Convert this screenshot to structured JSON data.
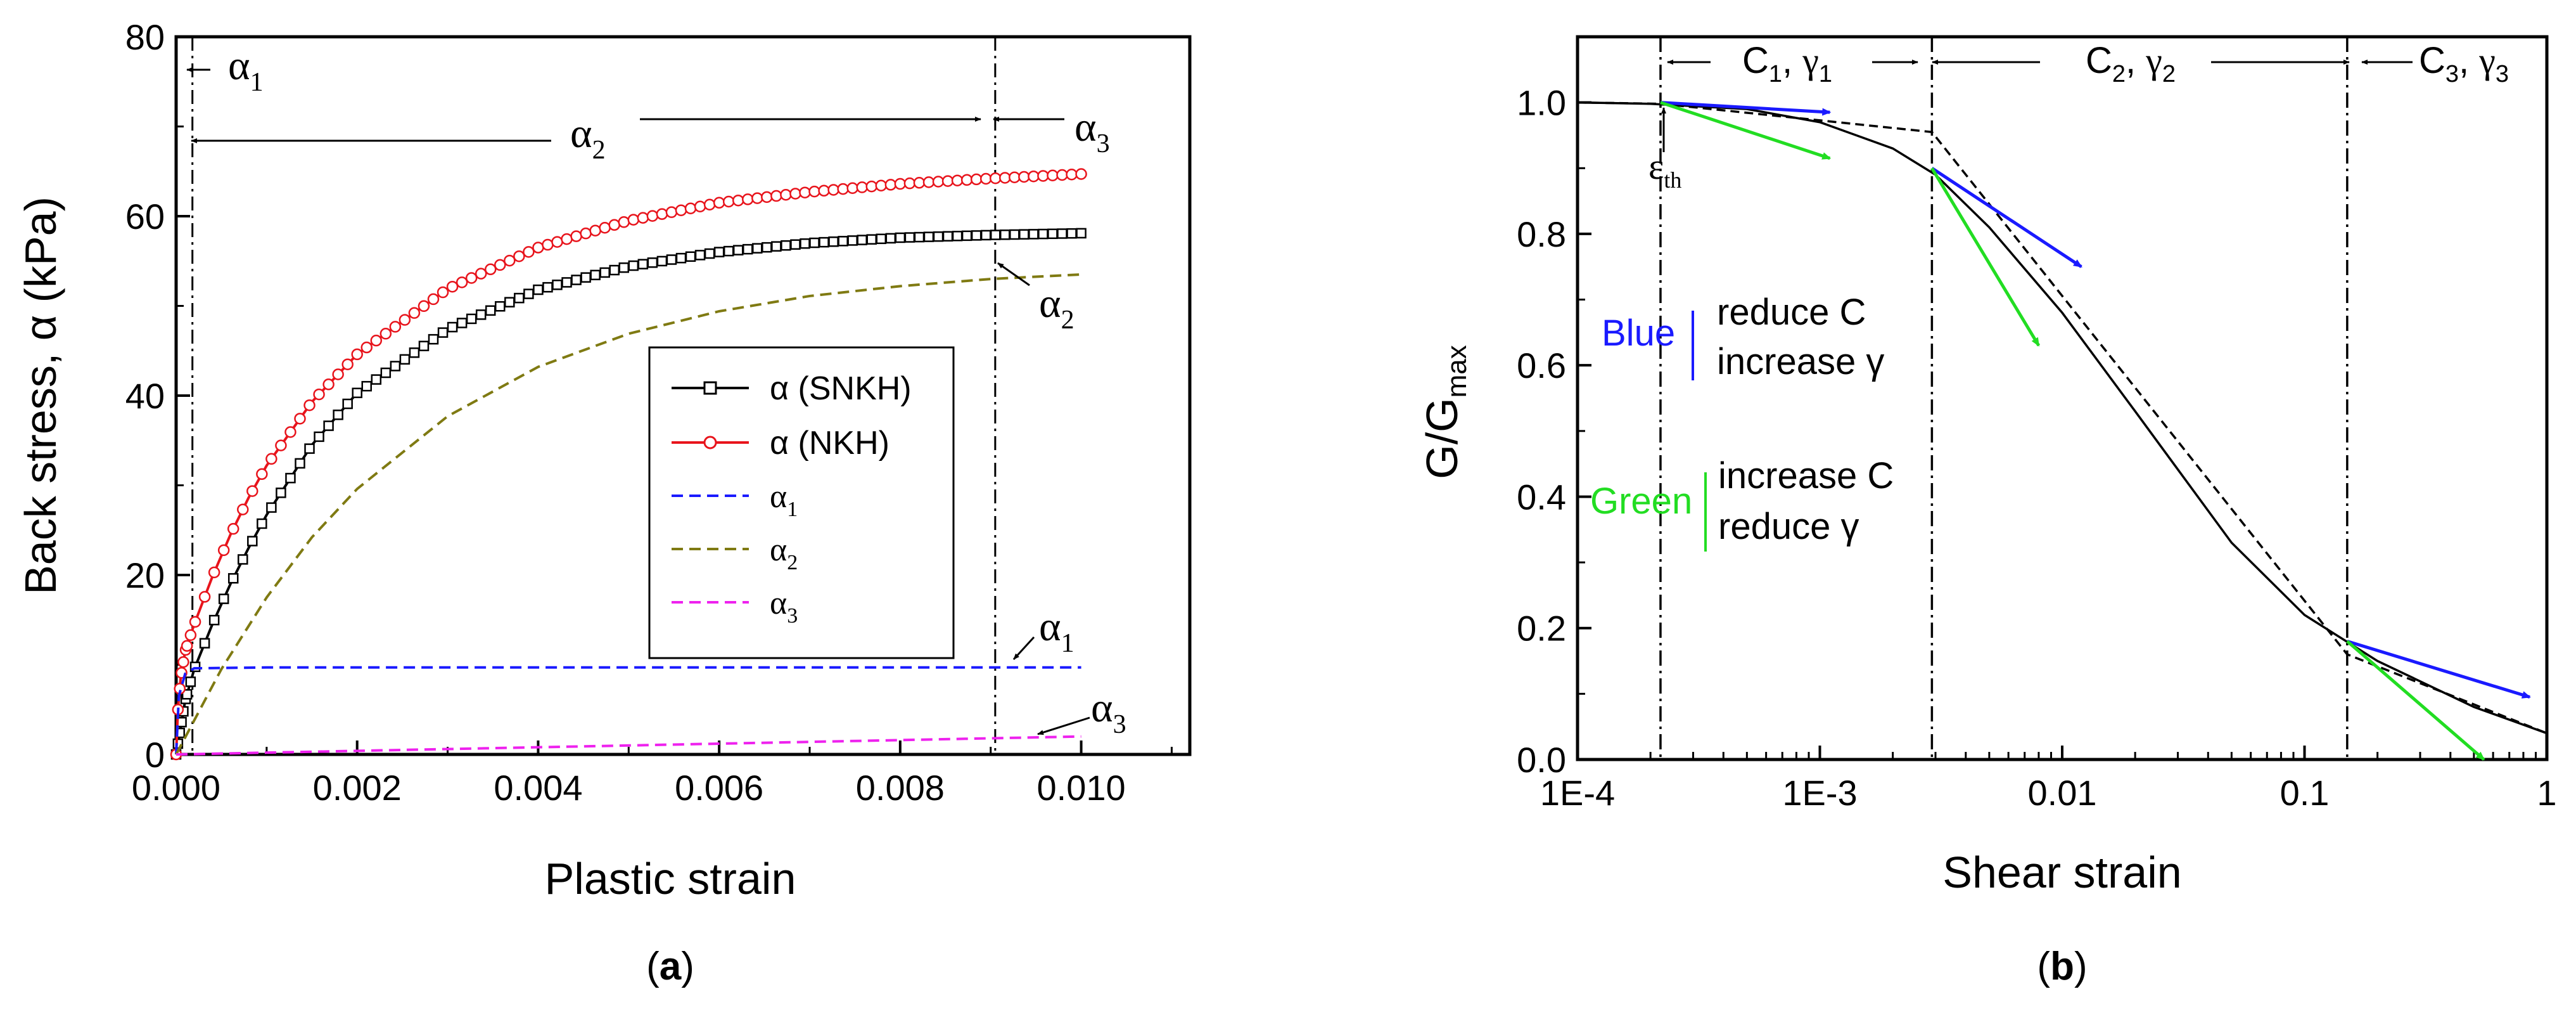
{
  "colors": {
    "snkh": "#000000",
    "nkh": "#e8141c",
    "alpha1": "#1a1aff",
    "alpha2": "#7f7a12",
    "alpha3": "#ee22ee",
    "blue": "#1a1aff",
    "green": "#22dd22"
  },
  "panel_a": {
    "caption": {
      "open": "(",
      "letter": "a",
      "close": ")"
    },
    "annotations": {
      "a1_top": "α",
      "a1_top_sub": "1",
      "a2_top": "α",
      "a2_top_sub": "2",
      "a3_top": "α",
      "a3_top_sub": "3",
      "a2_right": "α",
      "a2_right_sub": "2",
      "a1_right": "α",
      "a1_right_sub": "1",
      "a3_right": "α",
      "a3_right_sub": "3"
    },
    "legend": [
      {
        "main": "α (SNKH)",
        "sub": ""
      },
      {
        "main": "α (NKH)",
        "sub": ""
      },
      {
        "main": "α",
        "sub": "1"
      },
      {
        "main": "α",
        "sub": "2"
      },
      {
        "main": "α",
        "sub": "3"
      }
    ]
  },
  "panel_b": {
    "caption": {
      "open": "(",
      "letter": "b",
      "close": ")"
    },
    "region_labels": [
      {
        "c": "C",
        "c_sub": "1",
        "sep": ", ",
        "g": "γ",
        "g_sub": "1"
      },
      {
        "c": "C",
        "c_sub": "2",
        "sep": ", ",
        "g": "γ",
        "g_sub": "2"
      },
      {
        "c": "C",
        "c_sub": "3",
        "sep": ", ",
        "g": "γ",
        "g_sub": "3"
      }
    ],
    "eps_th": {
      "main": "ε",
      "sub": "th"
    },
    "blue_note": {
      "label": "Blue",
      "line1": "reduce C",
      "line2": "increase γ"
    },
    "green_note": {
      "label": "Green",
      "line1": "increase C",
      "line2": "reduce γ"
    }
  },
  "chart_data": [
    {
      "type": "line",
      "title": "",
      "xlabel": "Plastic strain",
      "ylabel": "Back stress, α (kPa)",
      "xlim": [
        0,
        0.0112
      ],
      "ylim": [
        0,
        80
      ],
      "xticks": [
        0.0,
        0.002,
        0.004,
        0.006,
        0.008,
        0.01
      ],
      "xtick_labels": [
        "0.000",
        "0.002",
        "0.004",
        "0.006",
        "0.008",
        "0.010"
      ],
      "yticks": [
        0,
        20,
        40,
        60,
        80
      ],
      "ytick_labels": [
        "0",
        "20",
        "40",
        "60",
        "80"
      ],
      "vlines": [
        0.00018,
        0.00905
      ],
      "legend_position": "center-right",
      "series": [
        {
          "name": "α (SNKH)",
          "style": "solid-square-markers",
          "x": [
            0,
            5e-05,
            0.0001,
            0.0002,
            0.0004,
            0.0006,
            0.0008,
            0.001,
            0.0015,
            0.002,
            0.003,
            0.004,
            0.005,
            0.006,
            0.007,
            0.008,
            0.009,
            0.01
          ],
          "y": [
            0,
            3,
            6,
            9.5,
            14.5,
            19,
            23,
            26.7,
            34.5,
            40.3,
            47.4,
            51.8,
            54.4,
            56.0,
            57.0,
            57.6,
            57.9,
            58.1
          ]
        },
        {
          "name": "α (NKH)",
          "style": "solid-circle-markers",
          "x": [
            0,
            2e-05,
            5e-05,
            0.0001,
            0.0002,
            0.0004,
            0.0006,
            0.0008,
            0.001,
            0.0015,
            0.002,
            0.003,
            0.004,
            0.005,
            0.006,
            0.007,
            0.008,
            0.009,
            0.01
          ],
          "y": [
            0,
            5,
            8.5,
            11.5,
            14.5,
            19.8,
            24.5,
            28.6,
            32.2,
            39.3,
            44.6,
            51.9,
            56.5,
            59.5,
            61.5,
            62.7,
            63.6,
            64.2,
            64.7
          ]
        },
        {
          "name": "α1",
          "style": "dashed",
          "x": [
            0,
            3e-05,
            0.0001,
            0.0002,
            0.001,
            0.003,
            0.005,
            0.007,
            0.009,
            0.01
          ],
          "y": [
            0,
            6.5,
            9.0,
            9.6,
            9.7,
            9.7,
            9.7,
            9.7,
            9.7,
            9.7
          ]
        },
        {
          "name": "α2",
          "style": "dashed",
          "x": [
            0,
            0.0005,
            0.001,
            0.0015,
            0.002,
            0.003,
            0.004,
            0.005,
            0.006,
            0.007,
            0.008,
            0.009,
            0.01
          ],
          "y": [
            0,
            9.5,
            17.5,
            24.2,
            29.6,
            37.7,
            43.2,
            46.9,
            49.4,
            51.1,
            52.2,
            53.0,
            53.5
          ]
        },
        {
          "name": "α3",
          "style": "dashed",
          "x": [
            0,
            0.001,
            0.002,
            0.004,
            0.006,
            0.008,
            0.01
          ],
          "y": [
            0,
            0.2,
            0.4,
            0.8,
            1.2,
            1.6,
            2.0
          ]
        }
      ]
    },
    {
      "type": "line",
      "title": "",
      "xlabel": "Shear strain",
      "ylabel": "G/Gmax",
      "xscale": "log",
      "xlim": [
        0.0001,
        1
      ],
      "ylim": [
        0,
        1.1
      ],
      "xticks": [
        0.0001,
        0.001,
        0.01,
        0.1,
        1
      ],
      "xtick_labels": [
        "1E-4",
        "1E-3",
        "0.01",
        "0.1",
        "1"
      ],
      "yticks": [
        0.0,
        0.2,
        0.4,
        0.6,
        0.8,
        1.0
      ],
      "ytick_labels": [
        "0.0",
        "0.2",
        "0.4",
        "0.6",
        "0.8",
        "1.0"
      ],
      "vlines": [
        0.00022,
        0.0029,
        0.15
      ],
      "series": [
        {
          "name": "G/Gmax curve",
          "style": "solid",
          "x": [
            0.0001,
            0.0002,
            0.0005,
            0.001,
            0.002,
            0.003,
            0.005,
            0.01,
            0.02,
            0.05,
            0.1,
            0.2,
            0.5,
            1
          ],
          "y": [
            1.0,
            0.998,
            0.99,
            0.97,
            0.93,
            0.89,
            0.81,
            0.68,
            0.53,
            0.33,
            0.22,
            0.15,
            0.08,
            0.04
          ]
        },
        {
          "name": "piecewise approximation",
          "style": "dashed",
          "x": [
            0.0001,
            0.00022,
            0.0029,
            0.15,
            1
          ],
          "y": [
            1.0,
            0.998,
            0.955,
            0.16,
            0.04
          ]
        }
      ],
      "arrows": [
        {
          "color": "blue",
          "from": [
            0.00022,
            1.0
          ],
          "to": [
            0.0011,
            0.985
          ]
        },
        {
          "color": "green",
          "from": [
            0.00022,
            1.0
          ],
          "to": [
            0.0011,
            0.915
          ]
        },
        {
          "color": "blue",
          "from": [
            0.0029,
            0.9
          ],
          "to": [
            0.012,
            0.75
          ]
        },
        {
          "color": "green",
          "from": [
            0.0029,
            0.9
          ],
          "to": [
            0.008,
            0.63
          ]
        },
        {
          "color": "blue",
          "from": [
            0.15,
            0.18
          ],
          "to": [
            0.85,
            0.095
          ]
        },
        {
          "color": "green",
          "from": [
            0.15,
            0.18
          ],
          "to": [
            0.55,
            0.0
          ]
        }
      ]
    }
  ]
}
